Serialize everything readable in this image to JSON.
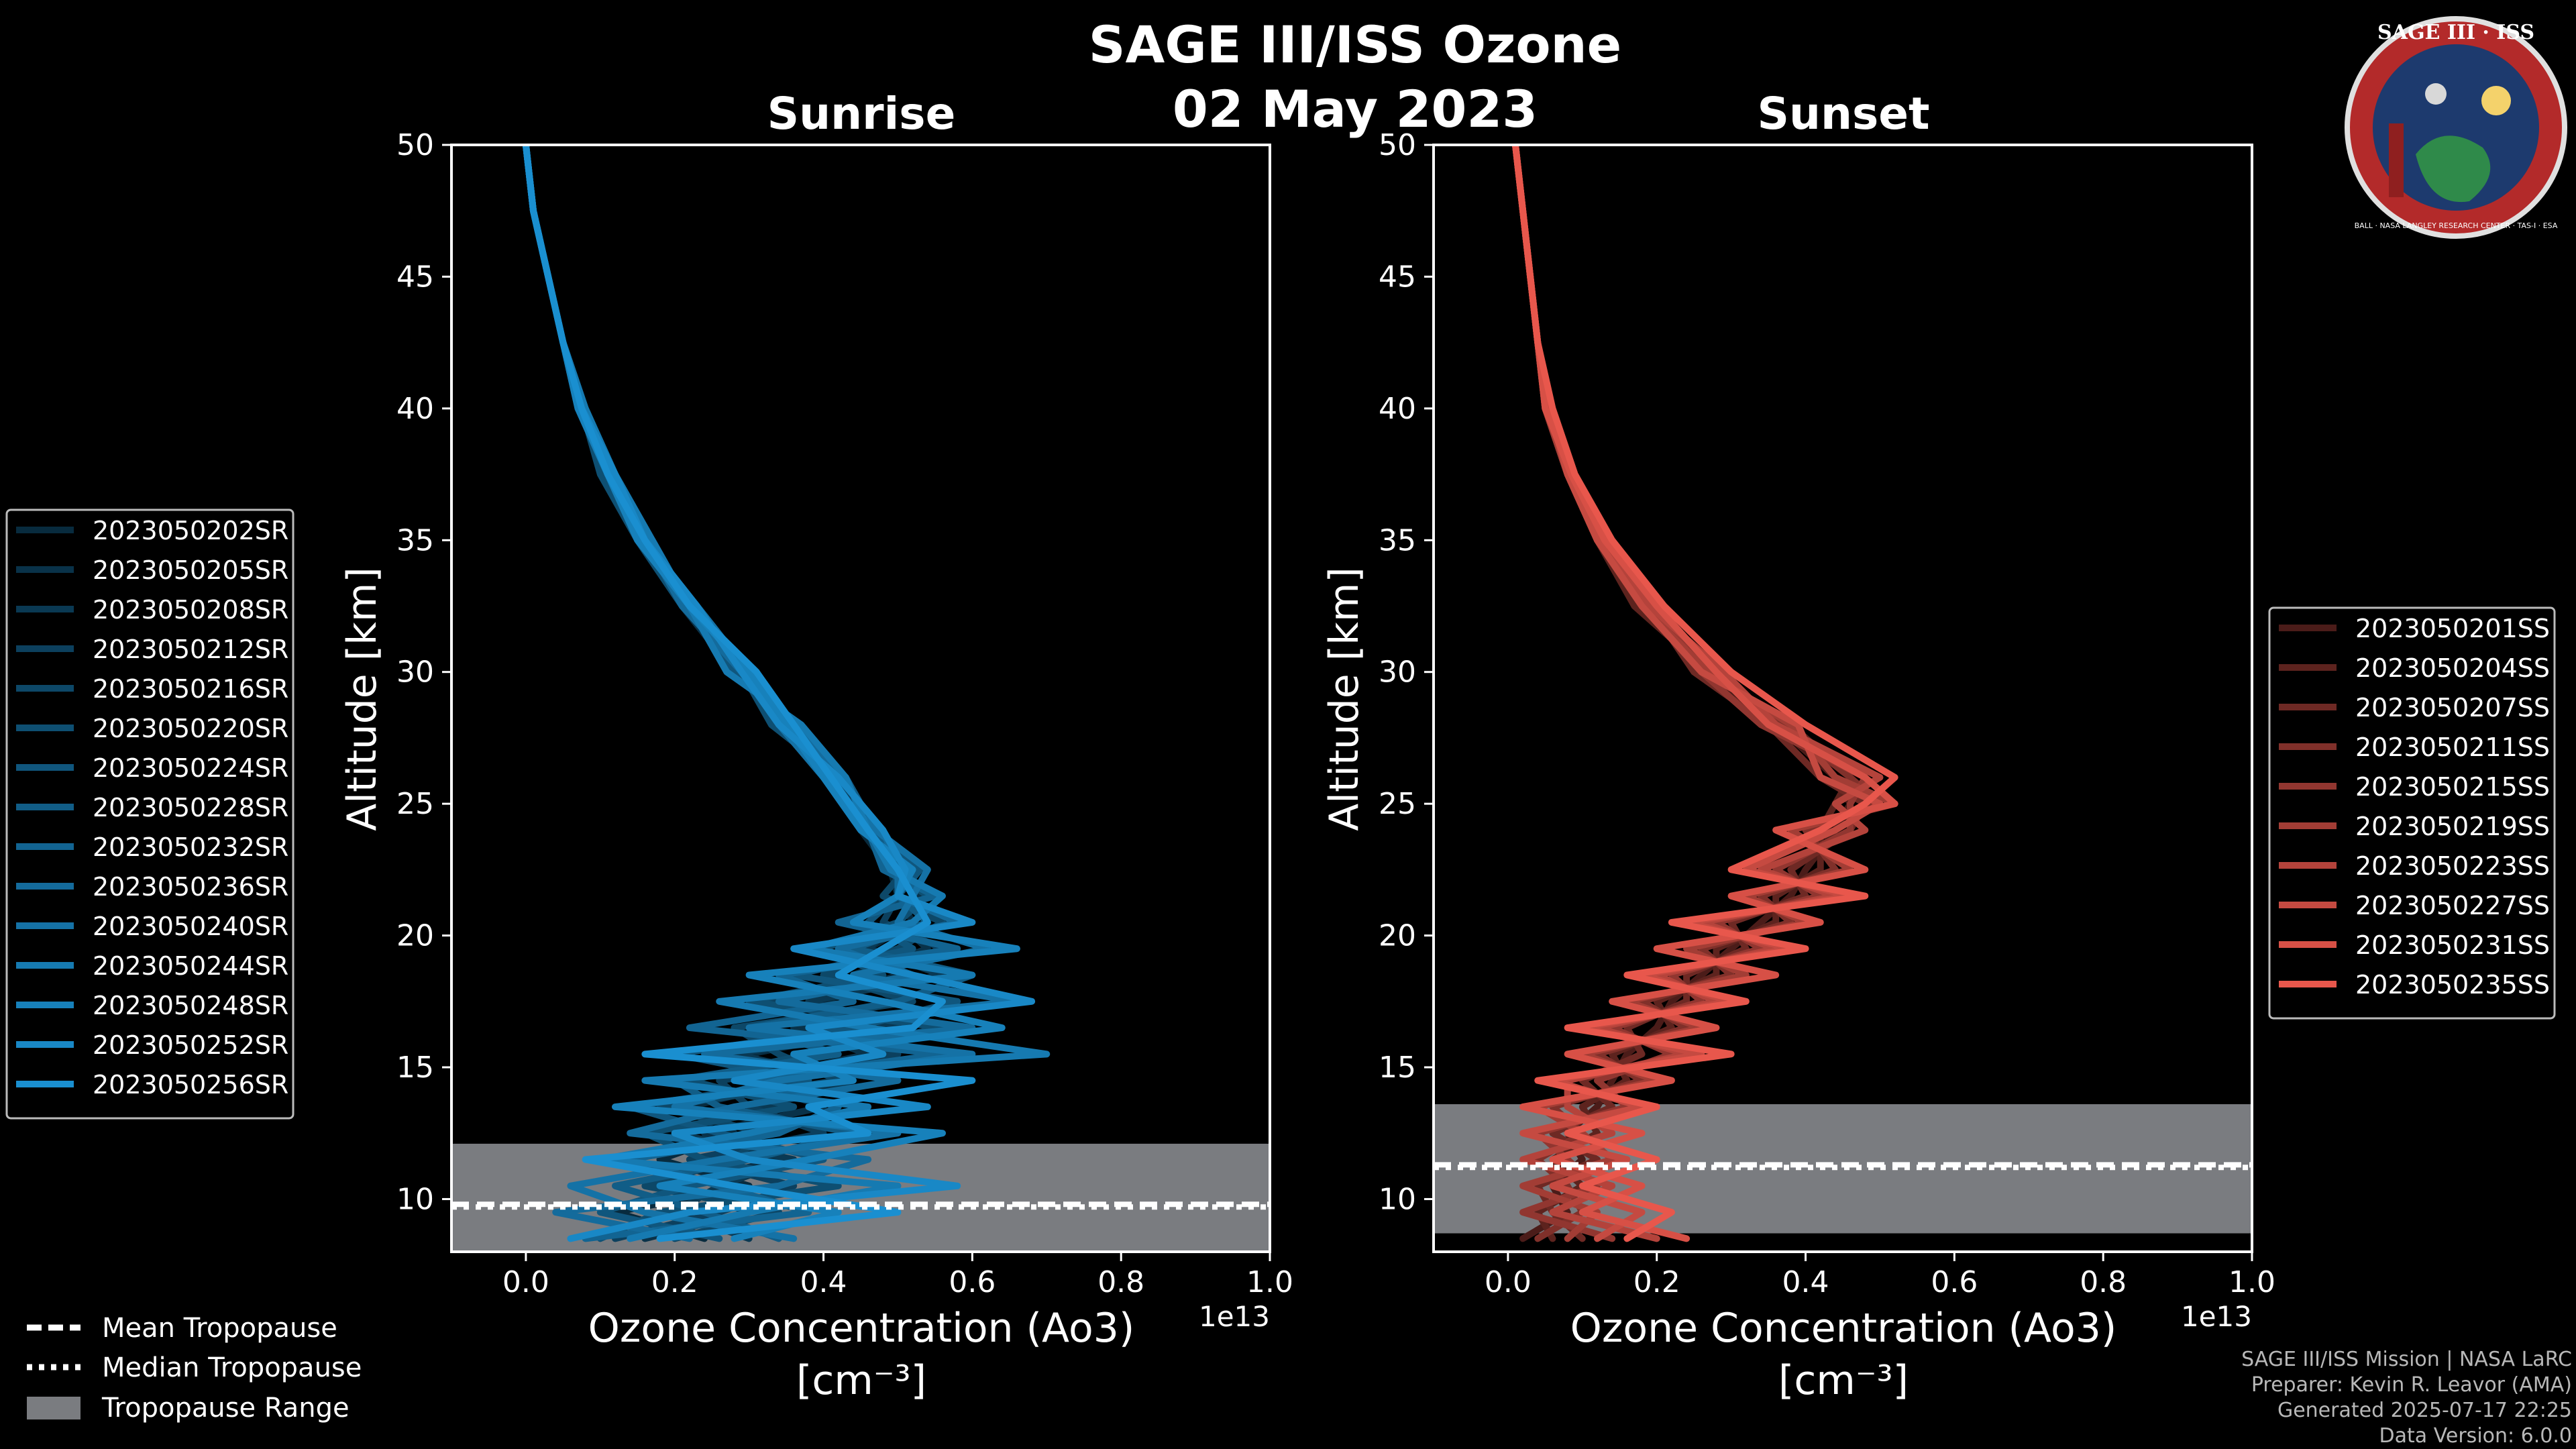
{
  "header": {
    "title": "SAGE III/ISS Ozone",
    "date": "02 May 2023"
  },
  "credits": {
    "mission": "SAGE III/ISS Mission | NASA LaRC",
    "preparer": "Preparer: Kevin R. Leavor (AMA)",
    "generated": "Generated 2025-07-17 22:25",
    "version": "Data Version: 6.0.0"
  },
  "logo": {
    "top": "SAGE III · ISS",
    "ring": "BALL · NASA LANGLEY RESEARCH CENTER · TAS-I · ESA"
  },
  "legend_bottom": {
    "mean": "Mean Tropopause",
    "median": "Median Tropopause",
    "range": "Tropopause Range"
  },
  "colors": {
    "sunrise": "#1a8fd0",
    "sunset": "#e8574c",
    "tropopause_band": "#7a7c80"
  },
  "chart_data": [
    {
      "type": "line",
      "title": "Sunrise",
      "xlabel": "Ozone Concentration (Ao3)",
      "xunit": "[cm⁻³]",
      "xscale_label": "1e13",
      "ylabel": "Altitude [km]",
      "xlim": [
        -0.1,
        1.0
      ],
      "ylim": [
        8,
        50
      ],
      "xticks": [
        0.0,
        0.2,
        0.4,
        0.6,
        0.8,
        1.0
      ],
      "xtick_labels": [
        "0.0",
        "0.2",
        "0.4",
        "0.6",
        "0.8",
        "1.0"
      ],
      "yticks": [
        10,
        15,
        20,
        25,
        30,
        35,
        40,
        45,
        50
      ],
      "tropopause": {
        "mean": 9.8,
        "median": 9.7,
        "range": [
          8,
          12.1
        ]
      },
      "altitudes": [
        8.5,
        9.5,
        10.5,
        11.5,
        12.5,
        13.5,
        14.5,
        15.5,
        16.5,
        17.5,
        18.5,
        19.5,
        20.5,
        21.5,
        22.5,
        24,
        26,
        28,
        30,
        32.5,
        35,
        37.5,
        40,
        42.5,
        45,
        47.5,
        50
      ],
      "base_profile": [
        0.2,
        0.22,
        0.24,
        0.27,
        0.3,
        0.33,
        0.37,
        0.4,
        0.43,
        0.46,
        0.48,
        0.5,
        0.51,
        0.51,
        0.5,
        0.47,
        0.41,
        0.35,
        0.29,
        0.22,
        0.16,
        0.11,
        0.075,
        0.05,
        0.03,
        0.01,
        0.0
      ],
      "series": [
        {
          "name": "2023050202SR",
          "values": [
            0.24,
            0.12,
            0.3,
            0.18,
            0.28,
            0.22,
            0.36,
            0.3,
            0.48,
            0.4,
            0.5,
            0.46,
            0.52,
            0.5,
            0.49,
            0.45,
            0.4,
            0.34,
            0.3,
            0.22,
            0.16,
            0.11,
            0.07,
            0.05,
            0.03,
            0.01,
            0.0
          ]
        },
        {
          "name": "2023050205SR",
          "values": [
            0.16,
            0.3,
            0.2,
            0.34,
            0.24,
            0.4,
            0.3,
            0.46,
            0.36,
            0.5,
            0.44,
            0.54,
            0.5,
            0.53,
            0.5,
            0.48,
            0.42,
            0.36,
            0.28,
            0.21,
            0.15,
            0.11,
            0.075,
            0.05,
            0.03,
            0.01,
            0.0
          ]
        },
        {
          "name": "2023050208SR",
          "values": [
            0.3,
            0.2,
            0.26,
            0.36,
            0.2,
            0.32,
            0.44,
            0.28,
            0.5,
            0.38,
            0.56,
            0.46,
            0.5,
            0.52,
            0.5,
            0.46,
            0.43,
            0.35,
            0.3,
            0.23,
            0.16,
            0.11,
            0.075,
            0.05,
            0.03,
            0.01,
            0.0
          ]
        },
        {
          "name": "2023050212SR",
          "values": [
            0.12,
            0.26,
            0.36,
            0.22,
            0.4,
            0.3,
            0.26,
            0.5,
            0.4,
            0.32,
            0.46,
            0.56,
            0.48,
            0.5,
            0.52,
            0.47,
            0.41,
            0.37,
            0.27,
            0.22,
            0.16,
            0.12,
            0.075,
            0.05,
            0.03,
            0.01,
            0.0
          ]
        },
        {
          "name": "2023050216SR",
          "values": [
            0.2,
            0.34,
            0.16,
            0.28,
            0.32,
            0.18,
            0.42,
            0.34,
            0.28,
            0.52,
            0.4,
            0.5,
            0.56,
            0.48,
            0.51,
            0.46,
            0.4,
            0.34,
            0.31,
            0.22,
            0.17,
            0.11,
            0.07,
            0.05,
            0.03,
            0.01,
            0.0
          ]
        },
        {
          "name": "2023050220SR",
          "values": [
            0.1,
            0.18,
            0.42,
            0.24,
            0.16,
            0.36,
            0.22,
            0.38,
            0.56,
            0.3,
            0.48,
            0.4,
            0.5,
            0.54,
            0.49,
            0.48,
            0.42,
            0.33,
            0.29,
            0.21,
            0.15,
            0.1,
            0.075,
            0.05,
            0.03,
            0.01,
            0.0
          ]
        },
        {
          "name": "2023050224SR",
          "values": [
            0.26,
            0.1,
            0.22,
            0.4,
            0.26,
            0.14,
            0.38,
            0.2,
            0.44,
            0.58,
            0.36,
            0.52,
            0.46,
            0.5,
            0.53,
            0.45,
            0.4,
            0.36,
            0.28,
            0.23,
            0.16,
            0.11,
            0.075,
            0.05,
            0.03,
            0.01,
            0.0
          ]
        },
        {
          "name": "2023050228SR",
          "values": [
            0.34,
            0.24,
            0.12,
            0.3,
            0.44,
            0.26,
            0.2,
            0.42,
            0.3,
            0.5,
            0.6,
            0.44,
            0.54,
            0.5,
            0.5,
            0.47,
            0.43,
            0.34,
            0.3,
            0.22,
            0.16,
            0.12,
            0.08,
            0.05,
            0.03,
            0.01,
            0.0
          ]
        },
        {
          "name": "2023050232SR",
          "values": [
            0.08,
            0.38,
            0.26,
            0.14,
            0.34,
            0.42,
            0.3,
            0.56,
            0.22,
            0.44,
            0.34,
            0.58,
            0.42,
            0.55,
            0.48,
            0.46,
            0.41,
            0.35,
            0.31,
            0.22,
            0.15,
            0.11,
            0.07,
            0.05,
            0.03,
            0.01,
            0.0
          ]
        },
        {
          "name": "2023050236SR",
          "values": [
            0.22,
            0.04,
            0.34,
            0.46,
            0.14,
            0.28,
            0.5,
            0.24,
            0.6,
            0.34,
            0.52,
            0.42,
            0.58,
            0.5,
            0.5,
            0.48,
            0.42,
            0.36,
            0.29,
            0.21,
            0.16,
            0.11,
            0.075,
            0.05,
            0.03,
            0.01,
            0.0
          ]
        },
        {
          "name": "2023050240SR",
          "values": [
            0.36,
            0.16,
            0.06,
            0.26,
            0.5,
            0.2,
            0.34,
            0.6,
            0.3,
            0.66,
            0.44,
            0.62,
            0.5,
            0.52,
            0.54,
            0.47,
            0.4,
            0.34,
            0.3,
            0.23,
            0.16,
            0.11,
            0.075,
            0.05,
            0.03,
            0.01,
            0.0
          ]
        },
        {
          "name": "2023050244SR",
          "values": [
            0.14,
            0.3,
            0.5,
            0.1,
            0.3,
            0.46,
            0.16,
            0.7,
            0.46,
            0.26,
            0.6,
            0.38,
            0.52,
            0.56,
            0.49,
            0.46,
            0.43,
            0.37,
            0.27,
            0.22,
            0.17,
            0.12,
            0.08,
            0.05,
            0.03,
            0.01,
            0.0
          ]
        },
        {
          "name": "2023050248SR",
          "values": [
            0.28,
            0.42,
            0.18,
            0.38,
            0.56,
            0.12,
            0.44,
            0.36,
            0.64,
            0.48,
            0.3,
            0.66,
            0.44,
            0.5,
            0.52,
            0.45,
            0.4,
            0.35,
            0.3,
            0.22,
            0.15,
            0.11,
            0.07,
            0.05,
            0.03,
            0.01,
            0.0
          ]
        },
        {
          "name": "2023050252SR",
          "values": [
            0.06,
            0.22,
            0.58,
            0.3,
            0.2,
            0.54,
            0.28,
            0.48,
            0.38,
            0.68,
            0.52,
            0.36,
            0.6,
            0.5,
            0.51,
            0.48,
            0.42,
            0.34,
            0.29,
            0.23,
            0.16,
            0.12,
            0.075,
            0.05,
            0.03,
            0.01,
            0.0
          ]
        },
        {
          "name": "2023050256SR",
          "values": [
            0.18,
            0.5,
            0.28,
            0.08,
            0.46,
            0.38,
            0.6,
            0.16,
            0.52,
            0.56,
            0.42,
            0.48,
            0.54,
            0.52,
            0.5,
            0.46,
            0.41,
            0.36,
            0.31,
            0.22,
            0.16,
            0.11,
            0.075,
            0.05,
            0.03,
            0.01,
            0.0
          ]
        }
      ]
    },
    {
      "type": "line",
      "title": "Sunset",
      "xlabel": "Ozone Concentration (Ao3)",
      "xunit": "[cm⁻³]",
      "xscale_label": "1e13",
      "ylabel": "Altitude [km]",
      "xlim": [
        -0.1,
        1.0
      ],
      "ylim": [
        8,
        50
      ],
      "xticks": [
        0.0,
        0.2,
        0.4,
        0.6,
        0.8,
        1.0
      ],
      "xtick_labels": [
        "0.0",
        "0.2",
        "0.4",
        "0.6",
        "0.8",
        "1.0"
      ],
      "yticks": [
        10,
        15,
        20,
        25,
        30,
        35,
        40,
        45,
        50
      ],
      "tropopause": {
        "mean": 11.3,
        "median": 11.2,
        "range": [
          8.7,
          13.6
        ]
      },
      "altitudes": [
        8.5,
        9.5,
        10.5,
        11.5,
        12.5,
        13.5,
        14.5,
        15.5,
        16.5,
        17.5,
        18.5,
        19.5,
        20.5,
        21.5,
        22.5,
        24,
        25,
        26,
        28,
        30,
        32.5,
        35,
        37.5,
        40,
        42.5,
        45,
        47.5,
        50
      ],
      "series": [
        {
          "name": "2023050201SS",
          "values": [
            0.02,
            0.08,
            0.06,
            0.1,
            0.08,
            0.12,
            0.14,
            0.16,
            0.2,
            0.22,
            0.26,
            0.3,
            0.34,
            0.38,
            0.4,
            0.44,
            0.46,
            0.44,
            0.36,
            0.26,
            0.18,
            0.12,
            0.08,
            0.05,
            0.04,
            0.03,
            0.02,
            0.01
          ]
        },
        {
          "name": "2023050204SS",
          "values": [
            0.06,
            0.04,
            0.1,
            0.06,
            0.12,
            0.1,
            0.16,
            0.14,
            0.22,
            0.2,
            0.28,
            0.28,
            0.36,
            0.36,
            0.42,
            0.42,
            0.44,
            0.46,
            0.38,
            0.27,
            0.17,
            0.12,
            0.08,
            0.05,
            0.04,
            0.03,
            0.02,
            0.01
          ]
        },
        {
          "name": "2023050207SS",
          "values": [
            0.1,
            0.06,
            0.04,
            0.12,
            0.06,
            0.14,
            0.1,
            0.18,
            0.16,
            0.24,
            0.24,
            0.32,
            0.3,
            0.4,
            0.38,
            0.46,
            0.48,
            0.42,
            0.35,
            0.25,
            0.19,
            0.13,
            0.085,
            0.055,
            0.04,
            0.03,
            0.02,
            0.01
          ]
        },
        {
          "name": "2023050211SS",
          "values": [
            0.04,
            0.1,
            0.08,
            0.04,
            0.1,
            0.06,
            0.18,
            0.12,
            0.24,
            0.18,
            0.3,
            0.26,
            0.38,
            0.34,
            0.44,
            0.4,
            0.5,
            0.46,
            0.37,
            0.28,
            0.18,
            0.12,
            0.08,
            0.05,
            0.04,
            0.03,
            0.02,
            0.01
          ]
        },
        {
          "name": "2023050215SS",
          "values": [
            0.14,
            0.02,
            0.12,
            0.08,
            0.04,
            0.16,
            0.12,
            0.22,
            0.14,
            0.26,
            0.22,
            0.34,
            0.28,
            0.42,
            0.36,
            0.46,
            0.46,
            0.48,
            0.34,
            0.26,
            0.2,
            0.13,
            0.085,
            0.055,
            0.04,
            0.03,
            0.02,
            0.01
          ]
        },
        {
          "name": "2023050219SS",
          "values": [
            0.08,
            0.12,
            0.02,
            0.14,
            0.1,
            0.04,
            0.2,
            0.1,
            0.26,
            0.16,
            0.32,
            0.24,
            0.4,
            0.32,
            0.46,
            0.38,
            0.52,
            0.44,
            0.38,
            0.27,
            0.18,
            0.12,
            0.08,
            0.05,
            0.04,
            0.03,
            0.02,
            0.01
          ]
        },
        {
          "name": "2023050223SS",
          "values": [
            0.2,
            0.06,
            0.14,
            0.02,
            0.14,
            0.08,
            0.08,
            0.24,
            0.12,
            0.28,
            0.2,
            0.36,
            0.26,
            0.44,
            0.34,
            0.48,
            0.44,
            0.5,
            0.36,
            0.29,
            0.19,
            0.13,
            0.085,
            0.05,
            0.04,
            0.03,
            0.02,
            0.01
          ]
        },
        {
          "name": "2023050227SS",
          "values": [
            0.12,
            0.18,
            0.06,
            0.16,
            0.02,
            0.18,
            0.06,
            0.26,
            0.1,
            0.3,
            0.18,
            0.38,
            0.24,
            0.46,
            0.32,
            0.44,
            0.5,
            0.42,
            0.39,
            0.26,
            0.18,
            0.12,
            0.08,
            0.055,
            0.04,
            0.03,
            0.02,
            0.01
          ]
        },
        {
          "name": "2023050231SS",
          "values": [
            0.24,
            0.1,
            0.18,
            0.06,
            0.18,
            0.02,
            0.22,
            0.08,
            0.28,
            0.14,
            0.36,
            0.2,
            0.42,
            0.3,
            0.48,
            0.36,
            0.52,
            0.48,
            0.35,
            0.28,
            0.2,
            0.13,
            0.085,
            0.05,
            0.04,
            0.03,
            0.02,
            0.01
          ]
        },
        {
          "name": "2023050235SS",
          "values": [
            0.16,
            0.22,
            0.1,
            0.2,
            0.08,
            0.2,
            0.04,
            0.3,
            0.08,
            0.32,
            0.16,
            0.4,
            0.22,
            0.48,
            0.3,
            0.42,
            0.48,
            0.52,
            0.4,
            0.3,
            0.21,
            0.14,
            0.09,
            0.06,
            0.04,
            0.03,
            0.02,
            0.01
          ]
        }
      ]
    }
  ]
}
